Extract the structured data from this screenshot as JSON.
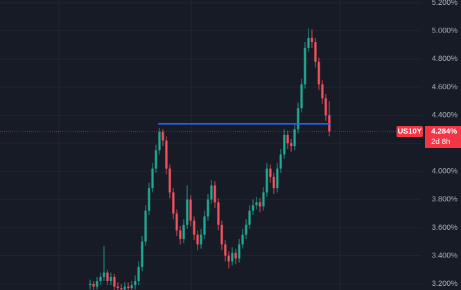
{
  "chart_data": {
    "type": "candlestick",
    "symbol": "US10Y",
    "open": [
      3.19,
      3.2,
      3.18,
      3.22,
      3.25,
      3.28,
      3.22,
      3.25,
      3.18,
      3.17,
      3.16,
      3.18,
      3.17,
      3.19,
      3.22,
      3.32,
      3.5,
      3.72,
      3.88,
      4.02,
      4.15,
      4.28,
      4.22,
      4.02,
      3.85,
      3.7,
      3.58,
      3.52,
      3.62,
      3.8,
      3.65,
      3.55,
      3.48,
      3.55,
      3.68,
      3.8,
      3.9,
      3.78,
      3.62,
      3.48,
      3.4,
      3.36,
      3.42,
      3.38,
      3.48,
      3.55,
      3.62,
      3.72,
      3.76,
      3.78,
      3.75,
      3.85,
      4.02,
      3.96,
      3.88,
      4.02,
      4.12,
      4.26,
      4.2,
      4.18,
      4.3,
      4.45,
      4.62,
      4.88,
      4.95,
      4.92,
      4.78,
      4.62,
      4.52,
      4.4
    ],
    "high": [
      3.23,
      3.22,
      3.25,
      3.28,
      3.47,
      3.3,
      3.28,
      3.27,
      3.21,
      3.2,
      3.21,
      3.21,
      3.22,
      3.26,
      3.36,
      3.54,
      3.76,
      3.92,
      4.06,
      4.19,
      4.31,
      4.3,
      4.25,
      4.05,
      3.88,
      3.73,
      3.61,
      3.66,
      3.9,
      3.83,
      3.68,
      3.58,
      3.59,
      3.72,
      3.84,
      3.94,
      3.93,
      3.81,
      3.65,
      3.51,
      3.43,
      3.46,
      3.45,
      3.52,
      3.59,
      3.66,
      3.76,
      3.8,
      3.82,
      3.81,
      3.89,
      4.06,
      4.05,
      3.99,
      4.06,
      4.16,
      4.3,
      4.29,
      4.23,
      4.34,
      4.49,
      4.66,
      4.92,
      5.02,
      5.01,
      4.95,
      4.81,
      4.65,
      4.55,
      4.5
    ],
    "low": [
      3.16,
      3.15,
      3.16,
      3.19,
      3.22,
      3.19,
      3.19,
      3.15,
      3.14,
      3.13,
      3.13,
      3.14,
      3.14,
      3.16,
      3.19,
      3.29,
      3.47,
      3.69,
      3.85,
      3.99,
      4.12,
      4.18,
      3.98,
      3.81,
      3.66,
      3.54,
      3.48,
      3.49,
      3.59,
      3.61,
      3.51,
      3.44,
      3.45,
      3.52,
      3.65,
      3.77,
      3.74,
      3.58,
      3.44,
      3.36,
      3.31,
      3.33,
      3.34,
      3.35,
      3.45,
      3.52,
      3.59,
      3.69,
      3.73,
      3.71,
      3.72,
      3.82,
      3.92,
      3.84,
      3.85,
      3.99,
      4.09,
      4.16,
      4.14,
      4.15,
      4.27,
      4.42,
      4.59,
      4.85,
      4.88,
      4.74,
      4.58,
      4.48,
      4.36,
      4.25
    ],
    "close": [
      3.2,
      3.18,
      3.22,
      3.25,
      3.28,
      3.22,
      3.25,
      3.18,
      3.17,
      3.16,
      3.18,
      3.17,
      3.19,
      3.22,
      3.32,
      3.5,
      3.72,
      3.88,
      4.02,
      4.15,
      4.28,
      4.22,
      4.02,
      3.85,
      3.7,
      3.58,
      3.52,
      3.62,
      3.8,
      3.65,
      3.55,
      3.48,
      3.55,
      3.68,
      3.8,
      3.9,
      3.78,
      3.62,
      3.48,
      3.4,
      3.36,
      3.42,
      3.38,
      3.48,
      3.55,
      3.62,
      3.72,
      3.76,
      3.78,
      3.75,
      3.85,
      4.02,
      3.96,
      3.88,
      4.02,
      4.12,
      4.26,
      4.2,
      4.18,
      4.3,
      4.45,
      4.62,
      4.88,
      4.95,
      4.92,
      4.78,
      4.62,
      4.52,
      4.4,
      4.284
    ],
    "up_color": "#22ab94",
    "down_color": "#f7525f",
    "ylim": [
      3.156,
      5.22
    ],
    "yticks": [
      {
        "value": 3.2,
        "label": "3.200%"
      },
      {
        "value": 3.4,
        "label": "3.400%"
      },
      {
        "value": 3.6,
        "label": "3.600%"
      },
      {
        "value": 3.8,
        "label": "3.800%"
      },
      {
        "value": 4.0,
        "label": "4.000%"
      },
      {
        "value": 4.2,
        "label": "4.200%"
      },
      {
        "value": 4.4,
        "label": "4.400%"
      },
      {
        "value": 4.6,
        "label": "4.600%"
      },
      {
        "value": 4.8,
        "label": "4.800%"
      },
      {
        "value": 5.0,
        "label": "5.000%"
      },
      {
        "value": 5.2,
        "label": "5.200%"
      }
    ],
    "grid": true,
    "trend_line": {
      "value": 4.338,
      "x": [
        20,
        69
      ],
      "color": "#2962ff"
    },
    "last_price": {
      "value": 4.284,
      "label": "4.284%",
      "countdown": "2d 8h",
      "color": "#f23645"
    }
  }
}
